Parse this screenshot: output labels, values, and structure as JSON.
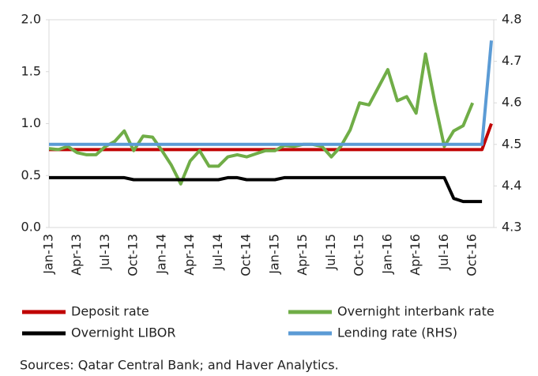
{
  "chart_data": {
    "type": "line",
    "categories": [
      "Jan-13",
      null,
      null,
      "Apr-13",
      null,
      null,
      "Jul-13",
      null,
      null,
      "Oct-13",
      null,
      null,
      "Jan-14",
      null,
      null,
      "Apr-14",
      null,
      null,
      "Jul-14",
      null,
      null,
      "Oct-14",
      null,
      null,
      "Jan-15",
      null,
      null,
      "Apr-15",
      null,
      null,
      "Jul-15",
      null,
      null,
      "Oct-15",
      null,
      null,
      "Jan-16",
      null,
      null,
      "Apr-16",
      null,
      null,
      "Jul-16",
      null,
      null,
      "Oct-16",
      null,
      null
    ],
    "series": [
      {
        "name": "Deposit rate",
        "color": "#c00000",
        "values": [
          0.75,
          0.75,
          0.75,
          0.75,
          0.75,
          0.75,
          0.75,
          0.75,
          0.75,
          0.75,
          0.75,
          0.75,
          0.75,
          0.75,
          0.75,
          0.75,
          0.75,
          0.75,
          0.75,
          0.75,
          0.75,
          0.75,
          0.75,
          0.75,
          0.75,
          0.75,
          0.75,
          0.75,
          0.75,
          0.75,
          0.75,
          0.75,
          0.75,
          0.75,
          0.75,
          0.75,
          0.75,
          0.75,
          0.75,
          0.75,
          0.75,
          0.75,
          0.75,
          0.75,
          0.75,
          0.75,
          0.75,
          1.0
        ]
      },
      {
        "name": "Overnight interbank rate",
        "color": "#70ad47",
        "values": [
          0.76,
          0.75,
          0.78,
          0.72,
          0.7,
          0.7,
          0.78,
          0.83,
          0.93,
          0.74,
          0.88,
          0.87,
          0.74,
          0.6,
          0.42,
          0.64,
          0.74,
          0.59,
          0.59,
          0.68,
          0.7,
          0.68,
          0.71,
          0.74,
          0.74,
          0.79,
          0.78,
          0.8,
          0.8,
          0.78,
          0.68,
          0.78,
          0.94,
          1.2,
          1.18,
          1.35,
          1.52,
          1.22,
          1.26,
          1.1,
          1.67,
          1.2,
          0.78,
          0.93,
          0.98,
          1.2,
          null,
          null
        ]
      },
      {
        "name": "Overnight LIBOR",
        "color": "#000000",
        "values": [
          0.48,
          0.48,
          0.48,
          0.48,
          0.48,
          0.48,
          0.48,
          0.48,
          0.48,
          0.46,
          0.46,
          0.46,
          0.46,
          0.46,
          0.46,
          0.46,
          0.46,
          0.46,
          0.46,
          0.48,
          0.48,
          0.46,
          0.46,
          0.46,
          0.46,
          0.48,
          0.48,
          0.48,
          0.48,
          0.48,
          0.48,
          0.48,
          0.48,
          0.48,
          0.48,
          0.48,
          0.48,
          0.48,
          0.48,
          0.48,
          0.48,
          0.48,
          0.48,
          0.28,
          0.25,
          0.25,
          0.25,
          null
        ]
      },
      {
        "name": "Lending rate (RHS)",
        "color": "#5b9bd5",
        "axis": "y2",
        "values": [
          4.5,
          4.5,
          4.5,
          4.5,
          4.5,
          4.5,
          4.5,
          4.5,
          4.5,
          4.5,
          4.5,
          4.5,
          4.5,
          4.5,
          4.5,
          4.5,
          4.5,
          4.5,
          4.5,
          4.5,
          4.5,
          4.5,
          4.5,
          4.5,
          4.5,
          4.5,
          4.5,
          4.5,
          4.5,
          4.5,
          4.5,
          4.5,
          4.5,
          4.5,
          4.5,
          4.5,
          4.5,
          4.5,
          4.5,
          4.5,
          4.5,
          4.5,
          4.5,
          4.5,
          4.5,
          4.5,
          4.5,
          4.75
        ]
      }
    ],
    "ylim": [
      0,
      2
    ],
    "yticks": [
      {
        "value": 0,
        "label": "0.0"
      },
      0.5,
      {
        "value": 1,
        "label": "1.0"
      },
      1.5,
      {
        "value": 2,
        "label": "2.0"
      }
    ],
    "y2lim": [
      4.3,
      4.8
    ],
    "y2ticks": [
      4.3,
      4.4,
      4.5,
      4.6,
      4.7,
      4.8
    ],
    "source": "Sources: Qatar Central Bank; and Haver Analytics."
  }
}
